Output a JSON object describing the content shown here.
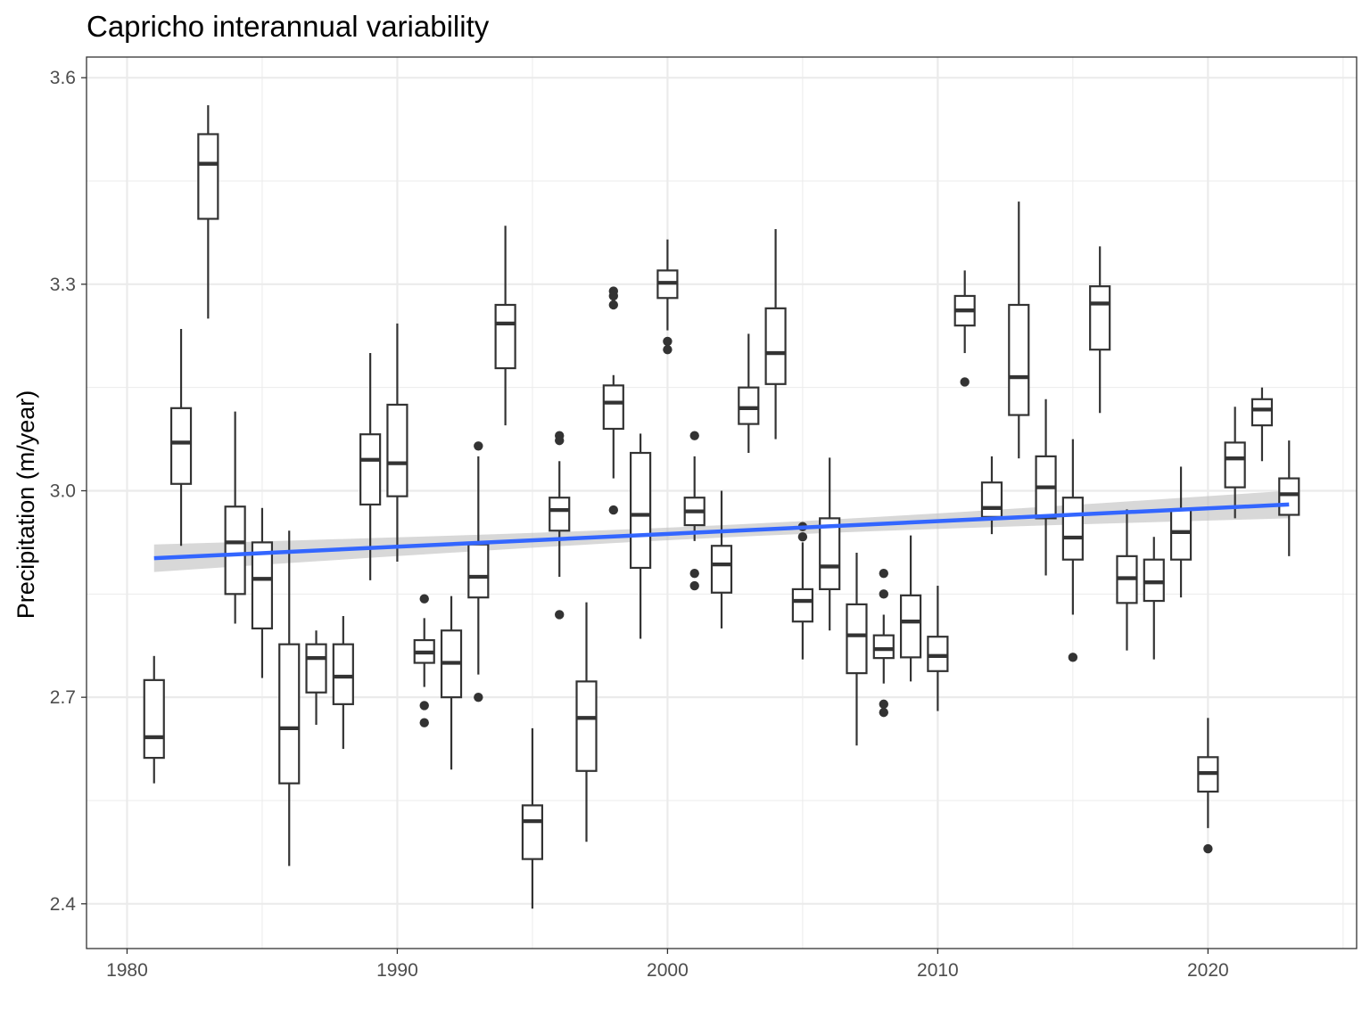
{
  "chart_data": {
    "type": "box",
    "title": "Capricho interannual variability",
    "xlabel": "",
    "ylabel": "Precipitation (m/year)",
    "xlim": [
      1978.5,
      2025.5
    ],
    "ylim": [
      2.335,
      3.63
    ],
    "x_ticks": [
      1980,
      1990,
      2000,
      2010,
      2020
    ],
    "x_tick_labels": [
      "1980",
      "1990",
      "2000",
      "2010",
      "2020"
    ],
    "y_ticks": [
      2.4,
      2.7,
      3.0,
      3.3,
      3.6
    ],
    "y_tick_labels": [
      "2.4",
      "2.7",
      "3.0",
      "3.3",
      "3.6"
    ],
    "grid": true,
    "boxes": [
      {
        "x": 1981,
        "lower_whisker": 2.575,
        "q1": 2.612,
        "median": 2.642,
        "q3": 2.725,
        "upper_whisker": 2.76,
        "outliers": []
      },
      {
        "x": 1982,
        "lower_whisker": 2.92,
        "q1": 3.01,
        "median": 3.07,
        "q3": 3.12,
        "upper_whisker": 3.235,
        "outliers": []
      },
      {
        "x": 1983,
        "lower_whisker": 3.25,
        "q1": 3.395,
        "median": 3.475,
        "q3": 3.518,
        "upper_whisker": 3.56,
        "outliers": []
      },
      {
        "x": 1984,
        "lower_whisker": 2.807,
        "q1": 2.85,
        "median": 2.925,
        "q3": 2.977,
        "upper_whisker": 3.115,
        "outliers": []
      },
      {
        "x": 1985,
        "lower_whisker": 2.728,
        "q1": 2.8,
        "median": 2.872,
        "q3": 2.925,
        "upper_whisker": 2.975,
        "outliers": []
      },
      {
        "x": 1986,
        "lower_whisker": 2.455,
        "q1": 2.575,
        "median": 2.655,
        "q3": 2.777,
        "upper_whisker": 2.942,
        "outliers": []
      },
      {
        "x": 1987,
        "lower_whisker": 2.66,
        "q1": 2.707,
        "median": 2.757,
        "q3": 2.777,
        "upper_whisker": 2.797,
        "outliers": []
      },
      {
        "x": 1988,
        "lower_whisker": 2.625,
        "q1": 2.69,
        "median": 2.73,
        "q3": 2.777,
        "upper_whisker": 2.818,
        "outliers": []
      },
      {
        "x": 1989,
        "lower_whisker": 2.87,
        "q1": 2.98,
        "median": 3.045,
        "q3": 3.082,
        "upper_whisker": 3.2,
        "outliers": []
      },
      {
        "x": 1990,
        "lower_whisker": 2.897,
        "q1": 2.992,
        "median": 3.04,
        "q3": 3.125,
        "upper_whisker": 3.243,
        "outliers": []
      },
      {
        "x": 1991,
        "lower_whisker": 2.715,
        "q1": 2.75,
        "median": 2.765,
        "q3": 2.783,
        "upper_whisker": 2.815,
        "outliers": [
          2.843,
          2.688,
          2.663
        ]
      },
      {
        "x": 1992,
        "lower_whisker": 2.595,
        "q1": 2.7,
        "median": 2.75,
        "q3": 2.797,
        "upper_whisker": 2.847,
        "outliers": []
      },
      {
        "x": 1993,
        "lower_whisker": 2.733,
        "q1": 2.845,
        "median": 2.875,
        "q3": 2.922,
        "upper_whisker": 3.05,
        "outliers": [
          3.065,
          2.7
        ]
      },
      {
        "x": 1994,
        "lower_whisker": 3.095,
        "q1": 3.178,
        "median": 3.243,
        "q3": 3.27,
        "upper_whisker": 3.385,
        "outliers": []
      },
      {
        "x": 1995,
        "lower_whisker": 2.393,
        "q1": 2.465,
        "median": 2.52,
        "q3": 2.543,
        "upper_whisker": 2.655,
        "outliers": []
      },
      {
        "x": 1996,
        "lower_whisker": 2.875,
        "q1": 2.942,
        "median": 2.972,
        "q3": 2.99,
        "upper_whisker": 3.043,
        "outliers": [
          3.08,
          3.073,
          2.82
        ]
      },
      {
        "x": 1997,
        "lower_whisker": 2.49,
        "q1": 2.593,
        "median": 2.67,
        "q3": 2.723,
        "upper_whisker": 2.838,
        "outliers": []
      },
      {
        "x": 1998,
        "lower_whisker": 3.018,
        "q1": 3.09,
        "median": 3.128,
        "q3": 3.153,
        "upper_whisker": 3.168,
        "outliers": [
          3.29,
          3.283,
          3.27,
          2.972
        ]
      },
      {
        "x": 1999,
        "lower_whisker": 2.785,
        "q1": 2.888,
        "median": 2.965,
        "q3": 3.055,
        "upper_whisker": 3.083,
        "outliers": []
      },
      {
        "x": 2000,
        "lower_whisker": 3.233,
        "q1": 3.28,
        "median": 3.302,
        "q3": 3.32,
        "upper_whisker": 3.365,
        "outliers": [
          3.217,
          3.205
        ]
      },
      {
        "x": 2001,
        "lower_whisker": 2.927,
        "q1": 2.95,
        "median": 2.97,
        "q3": 2.99,
        "upper_whisker": 3.05,
        "outliers": [
          3.08,
          2.88,
          2.862
        ]
      },
      {
        "x": 2002,
        "lower_whisker": 2.8,
        "q1": 2.852,
        "median": 2.893,
        "q3": 2.92,
        "upper_whisker": 3.0,
        "outliers": []
      },
      {
        "x": 2003,
        "lower_whisker": 3.055,
        "q1": 3.097,
        "median": 3.12,
        "q3": 3.15,
        "upper_whisker": 3.228,
        "outliers": []
      },
      {
        "x": 2004,
        "lower_whisker": 3.075,
        "q1": 3.155,
        "median": 3.2,
        "q3": 3.265,
        "upper_whisker": 3.38,
        "outliers": []
      },
      {
        "x": 2005,
        "lower_whisker": 2.755,
        "q1": 2.81,
        "median": 2.84,
        "q3": 2.857,
        "upper_whisker": 2.925,
        "outliers": [
          2.948,
          2.933
        ]
      },
      {
        "x": 2006,
        "lower_whisker": 2.797,
        "q1": 2.857,
        "median": 2.89,
        "q3": 2.96,
        "upper_whisker": 3.048,
        "outliers": []
      },
      {
        "x": 2007,
        "lower_whisker": 2.63,
        "q1": 2.735,
        "median": 2.79,
        "q3": 2.835,
        "upper_whisker": 2.91,
        "outliers": []
      },
      {
        "x": 2008,
        "lower_whisker": 2.72,
        "q1": 2.757,
        "median": 2.77,
        "q3": 2.79,
        "upper_whisker": 2.82,
        "outliers": [
          2.88,
          2.85,
          2.69,
          2.678
        ]
      },
      {
        "x": 2009,
        "lower_whisker": 2.723,
        "q1": 2.758,
        "median": 2.81,
        "q3": 2.848,
        "upper_whisker": 2.935,
        "outliers": []
      },
      {
        "x": 2010,
        "lower_whisker": 2.68,
        "q1": 2.738,
        "median": 2.76,
        "q3": 2.788,
        "upper_whisker": 2.862,
        "outliers": []
      },
      {
        "x": 2011,
        "lower_whisker": 3.2,
        "q1": 3.24,
        "median": 3.262,
        "q3": 3.283,
        "upper_whisker": 3.32,
        "outliers": [
          3.158
        ]
      },
      {
        "x": 2012,
        "lower_whisker": 2.937,
        "q1": 2.962,
        "median": 2.975,
        "q3": 3.012,
        "upper_whisker": 3.05,
        "outliers": []
      },
      {
        "x": 2013,
        "lower_whisker": 3.047,
        "q1": 3.11,
        "median": 3.165,
        "q3": 3.27,
        "upper_whisker": 3.42,
        "outliers": []
      },
      {
        "x": 2014,
        "lower_whisker": 2.877,
        "q1": 2.96,
        "median": 3.005,
        "q3": 3.05,
        "upper_whisker": 3.133,
        "outliers": []
      },
      {
        "x": 2015,
        "lower_whisker": 2.82,
        "q1": 2.9,
        "median": 2.932,
        "q3": 2.99,
        "upper_whisker": 3.075,
        "outliers": [
          2.758
        ]
      },
      {
        "x": 2016,
        "lower_whisker": 3.113,
        "q1": 3.205,
        "median": 3.272,
        "q3": 3.297,
        "upper_whisker": 3.355,
        "outliers": []
      },
      {
        "x": 2017,
        "lower_whisker": 2.768,
        "q1": 2.837,
        "median": 2.873,
        "q3": 2.905,
        "upper_whisker": 2.973,
        "outliers": []
      },
      {
        "x": 2018,
        "lower_whisker": 2.755,
        "q1": 2.84,
        "median": 2.867,
        "q3": 2.9,
        "upper_whisker": 2.933,
        "outliers": []
      },
      {
        "x": 2019,
        "lower_whisker": 2.845,
        "q1": 2.9,
        "median": 2.94,
        "q3": 2.973,
        "upper_whisker": 3.035,
        "outliers": []
      },
      {
        "x": 2020,
        "lower_whisker": 2.51,
        "q1": 2.563,
        "median": 2.59,
        "q3": 2.613,
        "upper_whisker": 2.67,
        "outliers": [
          2.48
        ]
      },
      {
        "x": 2021,
        "lower_whisker": 2.96,
        "q1": 3.005,
        "median": 3.047,
        "q3": 3.07,
        "upper_whisker": 3.122,
        "outliers": []
      },
      {
        "x": 2022,
        "lower_whisker": 3.043,
        "q1": 3.095,
        "median": 3.118,
        "q3": 3.133,
        "upper_whisker": 3.15,
        "outliers": []
      },
      {
        "x": 2023,
        "lower_whisker": 2.905,
        "q1": 2.965,
        "median": 2.995,
        "q3": 3.018,
        "upper_whisker": 3.073,
        "outliers": []
      }
    ],
    "trend_line": {
      "x": [
        1981,
        2023
      ],
      "y": [
        2.902,
        2.98
      ],
      "ci_halfwidth_ends": [
        0.02,
        0.02
      ],
      "ci_halfwidth_mid": 0.009,
      "color": "#3366ff",
      "band_color": "#bebebe"
    }
  }
}
